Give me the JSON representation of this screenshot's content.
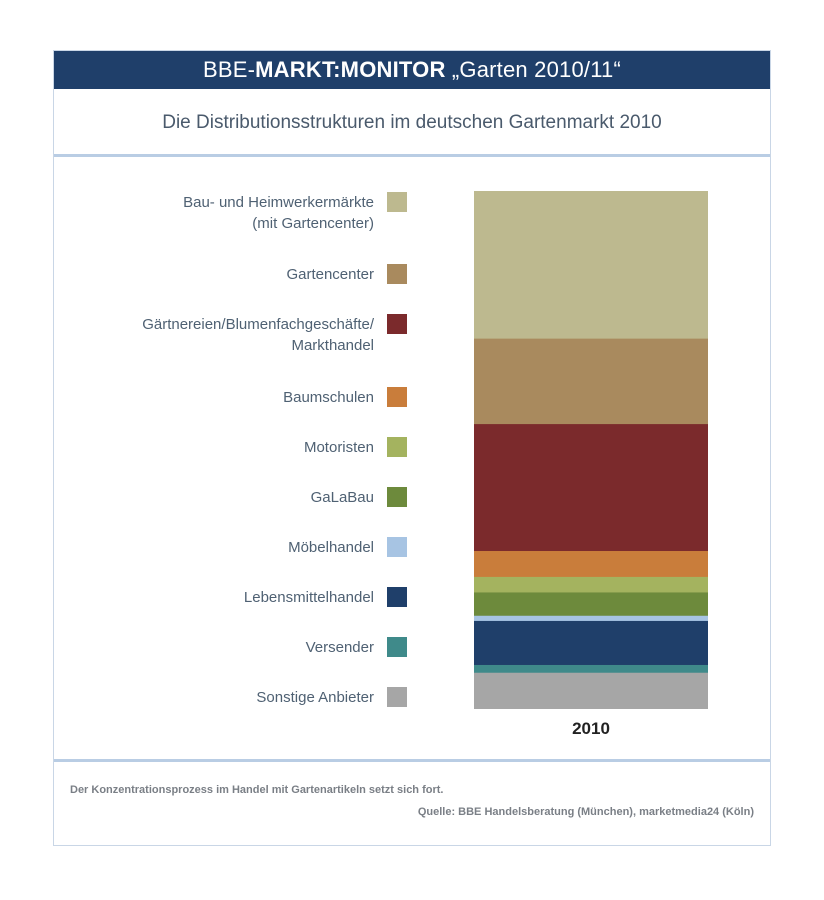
{
  "header": {
    "title_prefix": "BBE-",
    "title_bold": "MARKT:MONITOR",
    "title_suffix": " „Garten 2010/11“",
    "subtitle": "Die Distributionsstrukturen im deutschen Gartenmarkt 2010"
  },
  "chart_data": {
    "type": "bar",
    "stacked": true,
    "categories": [
      "2010"
    ],
    "series": [
      {
        "name": "Bau- und Heimwerkermärkte\n(mit Gartencenter)",
        "values": [
          28.5
        ],
        "color": "#bdb98f"
      },
      {
        "name": "Gartencenter",
        "values": [
          16.5
        ],
        "color": "#a98a5e"
      },
      {
        "name": "Gärtnereien/Blumenfachgeschäfte/\nMarkthandel",
        "values": [
          24.5
        ],
        "color": "#7b2a2c"
      },
      {
        "name": "Baumschulen",
        "values": [
          5.0
        ],
        "color": "#c97d3b"
      },
      {
        "name": "Motoristen",
        "values": [
          3.0
        ],
        "color": "#a4b35f"
      },
      {
        "name": "GaLaBau",
        "values": [
          4.5
        ],
        "color": "#6d8a3c"
      },
      {
        "name": "Möbelhandel",
        "values": [
          1.0
        ],
        "color": "#a7c4e3"
      },
      {
        "name": "Lebensmittelhandel",
        "values": [
          8.5
        ],
        "color": "#1f3f6a"
      },
      {
        "name": "Versender",
        "values": [
          1.5
        ],
        "color": "#3f8a8a"
      },
      {
        "name": "Sonstige Anbieter",
        "values": [
          7.0
        ],
        "color": "#a6a6a6"
      }
    ],
    "legend_position": "left"
  },
  "footer": {
    "note": "Der Konzentrationsprozess im Handel mit Gartenartikeln setzt sich fort.",
    "source": "Quelle: BBE Handelsberatung (München), marketmedia24 (Köln)"
  }
}
